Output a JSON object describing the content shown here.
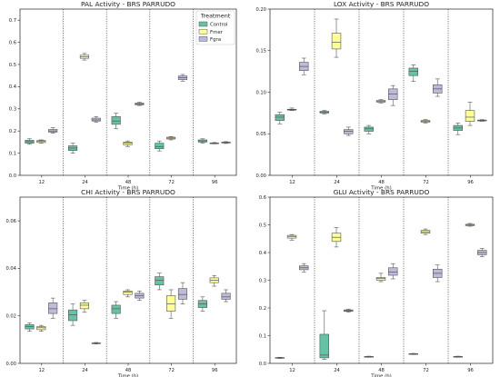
{
  "chart_data": [
    {
      "type": "box",
      "title": "PAL Activity - BRS PARRUDO",
      "xlabel": "Time (h)",
      "ylabel": "",
      "categories": [
        "12",
        "24",
        "48",
        "72",
        "96"
      ],
      "ylim": [
        0,
        0.75
      ],
      "yticks": [
        "0.0",
        "0.1",
        "0.2",
        "0.3",
        "0.4",
        "0.5",
        "0.6",
        "0.7"
      ],
      "grid": false,
      "legend": {
        "title": "Treatment",
        "placement": "top-right",
        "entries": [
          "Control",
          "Fmer",
          "Fgra"
        ]
      },
      "series": [
        {
          "name": "Control",
          "color": "#66c2a5",
          "boxes": [
            {
              "min": 0.14,
              "q1": 0.145,
              "median": 0.152,
              "q3": 0.158,
              "max": 0.165
            },
            {
              "min": 0.1,
              "q1": 0.112,
              "median": 0.123,
              "q3": 0.133,
              "max": 0.145
            },
            {
              "min": 0.21,
              "q1": 0.23,
              "median": 0.245,
              "q3": 0.265,
              "max": 0.28
            },
            {
              "min": 0.11,
              "q1": 0.12,
              "median": 0.13,
              "q3": 0.145,
              "max": 0.155
            },
            {
              "min": 0.145,
              "q1": 0.15,
              "median": 0.155,
              "q3": 0.16,
              "max": 0.165
            }
          ]
        },
        {
          "name": "Fmer",
          "color": "#ffff99",
          "boxes": [
            {
              "min": 0.145,
              "q1": 0.148,
              "median": 0.153,
              "q3": 0.157,
              "max": 0.16
            },
            {
              "min": 0.52,
              "q1": 0.528,
              "median": 0.535,
              "q3": 0.542,
              "max": 0.55
            },
            {
              "min": 0.13,
              "q1": 0.138,
              "median": 0.145,
              "q3": 0.15,
              "max": 0.155
            },
            {
              "min": 0.16,
              "q1": 0.164,
              "median": 0.168,
              "q3": 0.172,
              "max": 0.175
            },
            {
              "min": 0.142,
              "q1": 0.144,
              "median": 0.145,
              "q3": 0.146,
              "max": 0.148
            }
          ]
        },
        {
          "name": "Fgra",
          "color": "#bebada",
          "boxes": [
            {
              "min": 0.19,
              "q1": 0.195,
              "median": 0.2,
              "q3": 0.207,
              "max": 0.215
            },
            {
              "min": 0.24,
              "q1": 0.245,
              "median": 0.25,
              "q3": 0.258,
              "max": 0.265
            },
            {
              "min": 0.315,
              "q1": 0.318,
              "median": 0.322,
              "q3": 0.326,
              "max": 0.33
            },
            {
              "min": 0.425,
              "q1": 0.432,
              "median": 0.44,
              "q3": 0.448,
              "max": 0.455
            },
            {
              "min": 0.144,
              "q1": 0.146,
              "median": 0.148,
              "q3": 0.15,
              "max": 0.152
            }
          ]
        }
      ]
    },
    {
      "type": "box",
      "title": "LOX Activity - BRS PARRUDO",
      "xlabel": "Time (h)",
      "ylabel": "",
      "categories": [
        "12",
        "24",
        "48",
        "72",
        "96"
      ],
      "ylim": [
        0,
        0.2
      ],
      "yticks": [
        "0.00",
        "0.05",
        "0.10",
        "0.15",
        "0.20"
      ],
      "grid": false,
      "series": [
        {
          "name": "Control",
          "color": "#66c2a5",
          "boxes": [
            {
              "min": 0.062,
              "q1": 0.066,
              "median": 0.07,
              "q3": 0.073,
              "max": 0.076
            },
            {
              "min": 0.074,
              "q1": 0.075,
              "median": 0.076,
              "q3": 0.077,
              "max": 0.078
            },
            {
              "min": 0.05,
              "q1": 0.053,
              "median": 0.056,
              "q3": 0.058,
              "max": 0.06
            },
            {
              "min": 0.113,
              "q1": 0.12,
              "median": 0.125,
              "q3": 0.129,
              "max": 0.133
            },
            {
              "min": 0.049,
              "q1": 0.054,
              "median": 0.057,
              "q3": 0.06,
              "max": 0.063
            }
          ]
        },
        {
          "name": "Fmer",
          "color": "#ffff99",
          "boxes": [
            {
              "min": 0.078,
              "q1": 0.0785,
              "median": 0.079,
              "q3": 0.0795,
              "max": 0.081
            },
            {
              "min": 0.142,
              "q1": 0.152,
              "median": 0.16,
              "q3": 0.171,
              "max": 0.188
            },
            {
              "min": 0.087,
              "q1": 0.088,
              "median": 0.089,
              "q3": 0.09,
              "max": 0.091
            },
            {
              "min": 0.063,
              "q1": 0.064,
              "median": 0.065,
              "q3": 0.066,
              "max": 0.067
            },
            {
              "min": 0.06,
              "q1": 0.065,
              "median": 0.07,
              "q3": 0.078,
              "max": 0.088
            }
          ]
        },
        {
          "name": "Fgra",
          "color": "#bebada",
          "boxes": [
            {
              "min": 0.121,
              "q1": 0.126,
              "median": 0.131,
              "q3": 0.136,
              "max": 0.141
            },
            {
              "min": 0.048,
              "q1": 0.05,
              "median": 0.053,
              "q3": 0.055,
              "max": 0.058
            },
            {
              "min": 0.084,
              "q1": 0.091,
              "median": 0.098,
              "q3": 0.104,
              "max": 0.108
            },
            {
              "min": 0.095,
              "q1": 0.099,
              "median": 0.104,
              "q3": 0.109,
              "max": 0.116
            },
            {
              "min": 0.065,
              "q1": 0.0655,
              "median": 0.066,
              "q3": 0.0665,
              "max": 0.067
            }
          ]
        }
      ]
    },
    {
      "type": "box",
      "title": "CHI Activity - BRS PARRUDO",
      "xlabel": "Time (h)",
      "ylabel": "",
      "categories": [
        "12",
        "24",
        "48",
        "72",
        "96"
      ],
      "ylim": [
        0,
        0.07
      ],
      "yticks": [
        "0.00",
        "0.02",
        "0.04",
        "0.06"
      ],
      "grid": false,
      "series": [
        {
          "name": "Control",
          "color": "#66c2a5",
          "boxes": [
            {
              "min": 0.0135,
              "q1": 0.0145,
              "median": 0.0155,
              "q3": 0.0163,
              "max": 0.017
            },
            {
              "min": 0.016,
              "q1": 0.018,
              "median": 0.0205,
              "q3": 0.0225,
              "max": 0.025
            },
            {
              "min": 0.019,
              "q1": 0.021,
              "median": 0.023,
              "q3": 0.0245,
              "max": 0.026
            },
            {
              "min": 0.031,
              "q1": 0.033,
              "median": 0.035,
              "q3": 0.0365,
              "max": 0.038
            },
            {
              "min": 0.022,
              "q1": 0.0235,
              "median": 0.025,
              "q3": 0.0265,
              "max": 0.028
            }
          ]
        },
        {
          "name": "Fmer",
          "color": "#ffff99",
          "boxes": [
            {
              "min": 0.0135,
              "q1": 0.0142,
              "median": 0.015,
              "q3": 0.0155,
              "max": 0.016
            },
            {
              "min": 0.0215,
              "q1": 0.023,
              "median": 0.0245,
              "q3": 0.0255,
              "max": 0.0265
            },
            {
              "min": 0.028,
              "q1": 0.029,
              "median": 0.03,
              "q3": 0.0305,
              "max": 0.031
            },
            {
              "min": 0.019,
              "q1": 0.022,
              "median": 0.025,
              "q3": 0.0285,
              "max": 0.031
            },
            {
              "min": 0.0325,
              "q1": 0.034,
              "median": 0.035,
              "q3": 0.036,
              "max": 0.037
            }
          ]
        },
        {
          "name": "Fgra",
          "color": "#bebada",
          "boxes": [
            {
              "min": 0.019,
              "q1": 0.021,
              "median": 0.023,
              "q3": 0.0255,
              "max": 0.0275
            },
            {
              "min": 0.0082,
              "q1": 0.0084,
              "median": 0.0085,
              "q3": 0.0086,
              "max": 0.0088
            },
            {
              "min": 0.0265,
              "q1": 0.0275,
              "median": 0.0285,
              "q3": 0.0295,
              "max": 0.0305
            },
            {
              "min": 0.025,
              "q1": 0.027,
              "median": 0.029,
              "q3": 0.0315,
              "max": 0.034
            },
            {
              "min": 0.026,
              "q1": 0.027,
              "median": 0.028,
              "q3": 0.0295,
              "max": 0.031
            }
          ]
        }
      ]
    },
    {
      "type": "box",
      "title": "GLU Activity - BRS PARRUDO",
      "xlabel": "Time (h)",
      "ylabel": "",
      "categories": [
        "12",
        "24",
        "48",
        "72",
        "96"
      ],
      "ylim": [
        0,
        0.6
      ],
      "yticks": [
        "0.0",
        "0.1",
        "0.2",
        "0.3",
        "0.4",
        "0.5",
        "0.6"
      ],
      "grid": false,
      "series": [
        {
          "name": "Control",
          "color": "#66c2a5",
          "boxes": [
            {
              "min": 0.018,
              "q1": 0.019,
              "median": 0.02,
              "q3": 0.021,
              "max": 0.022
            },
            {
              "min": 0.015,
              "q1": 0.02,
              "median": 0.03,
              "q3": 0.105,
              "max": 0.19
            },
            {
              "min": 0.022,
              "q1": 0.023,
              "median": 0.024,
              "q3": 0.025,
              "max": 0.026
            },
            {
              "min": 0.032,
              "q1": 0.033,
              "median": 0.034,
              "q3": 0.035,
              "max": 0.036
            },
            {
              "min": 0.022,
              "q1": 0.023,
              "median": 0.024,
              "q3": 0.025,
              "max": 0.026
            }
          ]
        },
        {
          "name": "Fmer",
          "color": "#ffff99",
          "boxes": [
            {
              "min": 0.445,
              "q1": 0.452,
              "median": 0.458,
              "q3": 0.462,
              "max": 0.465
            },
            {
              "min": 0.42,
              "q1": 0.44,
              "median": 0.455,
              "q3": 0.47,
              "max": 0.49
            },
            {
              "min": 0.295,
              "q1": 0.3,
              "median": 0.306,
              "q3": 0.31,
              "max": 0.325
            },
            {
              "min": 0.465,
              "q1": 0.47,
              "median": 0.475,
              "q3": 0.48,
              "max": 0.485
            },
            {
              "min": 0.495,
              "q1": 0.497,
              "median": 0.5,
              "q3": 0.502,
              "max": 0.505
            }
          ]
        },
        {
          "name": "Fgra",
          "color": "#bebada",
          "boxes": [
            {
              "min": 0.33,
              "q1": 0.338,
              "median": 0.345,
              "q3": 0.352,
              "max": 0.36
            },
            {
              "min": 0.185,
              "q1": 0.188,
              "median": 0.19,
              "q3": 0.193,
              "max": 0.196
            },
            {
              "min": 0.305,
              "q1": 0.318,
              "median": 0.33,
              "q3": 0.345,
              "max": 0.36
            },
            {
              "min": 0.295,
              "q1": 0.31,
              "median": 0.325,
              "q3": 0.34,
              "max": 0.355
            },
            {
              "min": 0.385,
              "q1": 0.392,
              "median": 0.4,
              "q3": 0.408,
              "max": 0.415
            }
          ]
        }
      ]
    }
  ]
}
